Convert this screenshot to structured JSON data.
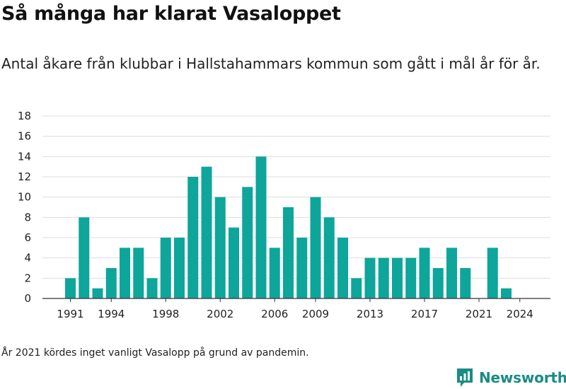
{
  "title": "Så många har klarat Vasaloppet",
  "subtitle": "Antal åkare från klubbar i Hallstahammars kommun som gått i mål år för år.",
  "note": "År 2021 kördes inget vanligt Vasalopp på grund av pandemin.",
  "brand": "Newsworthy",
  "colors": {
    "bar": "#0ea59b",
    "grid": "#dddddd",
    "axis": "#333333",
    "brand": "#1a8c85"
  },
  "chart_data": {
    "type": "bar",
    "title": "Så många har klarat Vasaloppet",
    "xlabel": "",
    "ylabel": "",
    "ylim": [
      0,
      18
    ],
    "yticks": [
      0,
      2,
      4,
      6,
      8,
      10,
      12,
      14,
      16,
      18
    ],
    "xtick_labels": [
      "1991",
      "1994",
      "1998",
      "2002",
      "2006",
      "2009",
      "2013",
      "2017",
      "2021",
      "2024"
    ],
    "grid": true,
    "categories": [
      1991,
      1992,
      1993,
      1994,
      1995,
      1996,
      1997,
      1998,
      1999,
      2000,
      2001,
      2002,
      2003,
      2004,
      2005,
      2006,
      2007,
      2008,
      2009,
      2010,
      2011,
      2012,
      2013,
      2014,
      2015,
      2016,
      2017,
      2018,
      2019,
      2020,
      2021,
      2022,
      2023,
      2024
    ],
    "values": [
      2,
      8,
      1,
      3,
      5,
      5,
      2,
      6,
      6,
      12,
      13,
      10,
      7,
      11,
      14,
      5,
      9,
      6,
      10,
      8,
      6,
      2,
      4,
      4,
      4,
      4,
      5,
      3,
      5,
      3,
      0,
      5,
      1,
      0
    ]
  }
}
